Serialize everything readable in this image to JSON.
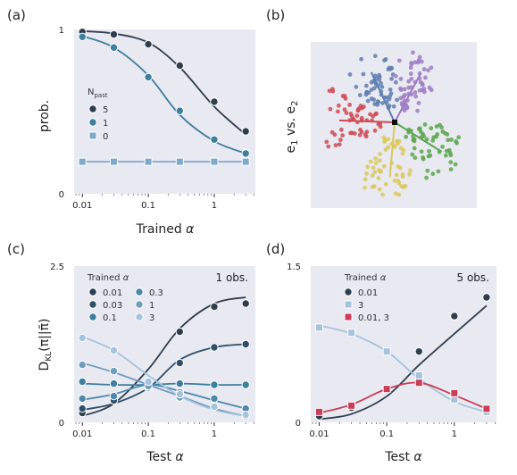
{
  "panels": {
    "a": {
      "label": "(a)"
    },
    "b": {
      "label": "(b)",
      "ylabel": "e",
      "ylabel_sub1": "1",
      "ylabel_mid": " vs. e",
      "ylabel_sub2": "2"
    },
    "c": {
      "label": "(c)"
    },
    "d": {
      "label": "(d)"
    }
  },
  "colors": {
    "plot_bg": "#e9e9f2",
    "dark": "#2f3e4e",
    "mid": "#3c7f9e",
    "light": "#7fa9c8",
    "lighter": "#a4c3dc",
    "red": "#cb3d56",
    "gray": "#6b7d92"
  },
  "chart_data": [
    {
      "id": "a",
      "type": "line",
      "xscale": "log",
      "xlim": [
        0.0075,
        4.2
      ],
      "ylim": [
        0,
        1
      ],
      "xticks": [
        {
          "v": 0.01,
          "t": "0.01"
        },
        {
          "v": 0.1,
          "t": "0.1"
        },
        {
          "v": 1,
          "t": "1"
        }
      ],
      "yticks": [
        {
          "v": 0,
          "t": "0"
        },
        {
          "v": 1,
          "t": "1"
        }
      ],
      "xlabel": "Trained",
      "xlabel_sym": "α",
      "ylabel": "prob.",
      "legend": {
        "title": "N",
        "title_sub": "past",
        "entries": [
          "5",
          "1",
          "0"
        ]
      },
      "series": [
        {
          "name": "5",
          "color": "#2f3e4e",
          "marker": "circle",
          "x": [
            0.01,
            0.03,
            0.1,
            0.3,
            1,
            3
          ],
          "y": [
            0.985,
            0.97,
            0.91,
            0.78,
            0.56,
            0.38
          ],
          "curve_y": [
            0.99,
            0.975,
            0.92,
            0.77,
            0.53,
            0.36
          ]
        },
        {
          "name": "1",
          "color": "#3c7f9e",
          "marker": "circle",
          "x": [
            0.01,
            0.03,
            0.1,
            0.3,
            1,
            3
          ],
          "y": [
            0.955,
            0.89,
            0.71,
            0.505,
            0.33,
            0.245
          ],
          "curve_y": [
            0.96,
            0.89,
            0.72,
            0.48,
            0.32,
            0.245
          ]
        },
        {
          "name": "0",
          "color": "#7fa9c8",
          "marker": "square",
          "x": [
            0.01,
            0.03,
            0.1,
            0.3,
            1,
            3
          ],
          "y": [
            0.195,
            0.195,
            0.195,
            0.195,
            0.195,
            0.195
          ],
          "curve_y": [
            0.195,
            0.195,
            0.195,
            0.195,
            0.195,
            0.195
          ]
        }
      ]
    },
    {
      "id": "c",
      "type": "line",
      "xscale": "log",
      "xlim": [
        0.0075,
        4.2
      ],
      "ylim": [
        0,
        2.5
      ],
      "xticks": [
        {
          "v": 0.01,
          "t": "0.01"
        },
        {
          "v": 0.1,
          "t": "0.1"
        },
        {
          "v": 1,
          "t": "1"
        }
      ],
      "yticks": [
        {
          "v": 0,
          "t": "0"
        },
        {
          "v": 2.5,
          "t": "2.5"
        }
      ],
      "xlabel": "Test",
      "xlabel_sym": "α",
      "ylabel": "D",
      "ylabel_sub": "KL",
      "ylabel_tail": "(π||π̄)",
      "annotation": "1 obs.",
      "legend": {
        "title": "Trained",
        "title_sym": "α",
        "entries": [
          "0.01",
          "0.03",
          "0.1",
          "0.3",
          "1",
          "3"
        ]
      },
      "series": [
        {
          "name": "0.01",
          "color": "#2f3e4e",
          "marker": "circle",
          "x": [
            0.01,
            0.03,
            0.1,
            0.3,
            1,
            3
          ],
          "y": [
            0.15,
            0.35,
            0.65,
            1.45,
            1.85,
            1.9
          ],
          "curve_y": [
            0.1,
            0.3,
            0.85,
            1.5,
            1.9,
            2.0
          ]
        },
        {
          "name": "0.03",
          "color": "#2f4f6a",
          "marker": "circle",
          "x": [
            0.01,
            0.03,
            0.1,
            0.3,
            1,
            3
          ],
          "y": [
            0.22,
            0.35,
            0.55,
            0.95,
            1.2,
            1.25
          ],
          "curve_y": [
            0.2,
            0.3,
            0.55,
            1.0,
            1.2,
            1.25
          ]
        },
        {
          "name": "0.1",
          "color": "#3c7f9e",
          "marker": "circle",
          "x": [
            0.01,
            0.03,
            0.1,
            0.3,
            1,
            3
          ],
          "y": [
            0.65,
            0.62,
            0.62,
            0.62,
            0.6,
            0.6
          ],
          "curve_y": [
            0.62,
            0.6,
            0.6,
            0.62,
            0.6,
            0.6
          ]
        },
        {
          "name": "0.3",
          "color": "#4d88ab",
          "marker": "circle",
          "x": [
            0.01,
            0.03,
            0.1,
            0.3,
            1,
            3
          ],
          "y": [
            0.38,
            0.42,
            0.57,
            0.48,
            0.38,
            0.22
          ],
          "curve_y": [
            0.36,
            0.45,
            0.6,
            0.5,
            0.35,
            0.22
          ]
        },
        {
          "name": "1",
          "color": "#6f9dbe",
          "marker": "circle",
          "x": [
            0.01,
            0.03,
            0.1,
            0.3,
            1,
            3
          ],
          "y": [
            0.92,
            0.82,
            0.58,
            0.4,
            0.25,
            0.1
          ],
          "curve_y": [
            0.95,
            0.8,
            0.6,
            0.42,
            0.22,
            0.1
          ]
        },
        {
          "name": "3",
          "color": "#a4c3dc",
          "marker": "circle",
          "x": [
            0.01,
            0.03,
            0.1,
            0.3,
            1,
            3
          ],
          "y": [
            1.35,
            1.15,
            0.65,
            0.45,
            0.25,
            0.12
          ],
          "curve_y": [
            1.37,
            1.15,
            0.75,
            0.42,
            0.2,
            0.1
          ]
        }
      ]
    },
    {
      "id": "d",
      "type": "line",
      "xscale": "log",
      "xlim": [
        0.0075,
        4.2
      ],
      "ylim": [
        0,
        1.5
      ],
      "xticks": [
        {
          "v": 0.01,
          "t": "0.01"
        },
        {
          "v": 0.1,
          "t": "0.1"
        },
        {
          "v": 1,
          "t": "1"
        }
      ],
      "yticks": [
        {
          "v": 0,
          "t": "0"
        },
        {
          "v": 1.5,
          "t": "1.5"
        }
      ],
      "xlabel": "Test",
      "xlabel_sym": "α",
      "annotation": "5 obs.",
      "legend": {
        "title": "Trained",
        "title_sym": "α",
        "entries": [
          "0.01",
          "3",
          "0.01, 3"
        ]
      },
      "series": [
        {
          "name": "0.01",
          "color": "#2f3e4e",
          "marker": "circle",
          "x": [
            0.01,
            0.03,
            0.1,
            0.3,
            1,
            3
          ],
          "y": [
            0.06,
            0.14,
            0.32,
            0.68,
            1.02,
            1.2
          ],
          "curve_y": [
            0.03,
            0.08,
            0.25,
            0.55,
            0.85,
            1.12
          ]
        },
        {
          "name": "3",
          "color": "#a4c3dc",
          "marker": "square",
          "x": [
            0.01,
            0.03,
            0.1,
            0.3,
            1,
            3
          ],
          "y": [
            0.91,
            0.86,
            0.68,
            0.45,
            0.22,
            0.1
          ],
          "curve_y": [
            0.93,
            0.85,
            0.68,
            0.42,
            0.2,
            0.1
          ]
        },
        {
          "name": "0.01, 3",
          "color": "#cb3d56",
          "marker": "square",
          "x": [
            0.01,
            0.03,
            0.1,
            0.3,
            1,
            3
          ],
          "y": [
            0.1,
            0.16,
            0.32,
            0.38,
            0.28,
            0.13
          ],
          "curve_y": [
            0.09,
            0.17,
            0.32,
            0.38,
            0.26,
            0.13
          ]
        }
      ]
    }
  ],
  "scatter_panel": {
    "id": "b",
    "type": "scatter",
    "clusters": [
      {
        "color": "#5e7fb0",
        "angle_deg": 115
      },
      {
        "color": "#9c7cc4",
        "angle_deg": 62
      },
      {
        "color": "#cf4a52",
        "angle_deg": 178
      },
      {
        "color": "#5aa64f",
        "angle_deg": -32
      },
      {
        "color": "#d9c95a",
        "angle_deg": -95
      }
    ]
  }
}
